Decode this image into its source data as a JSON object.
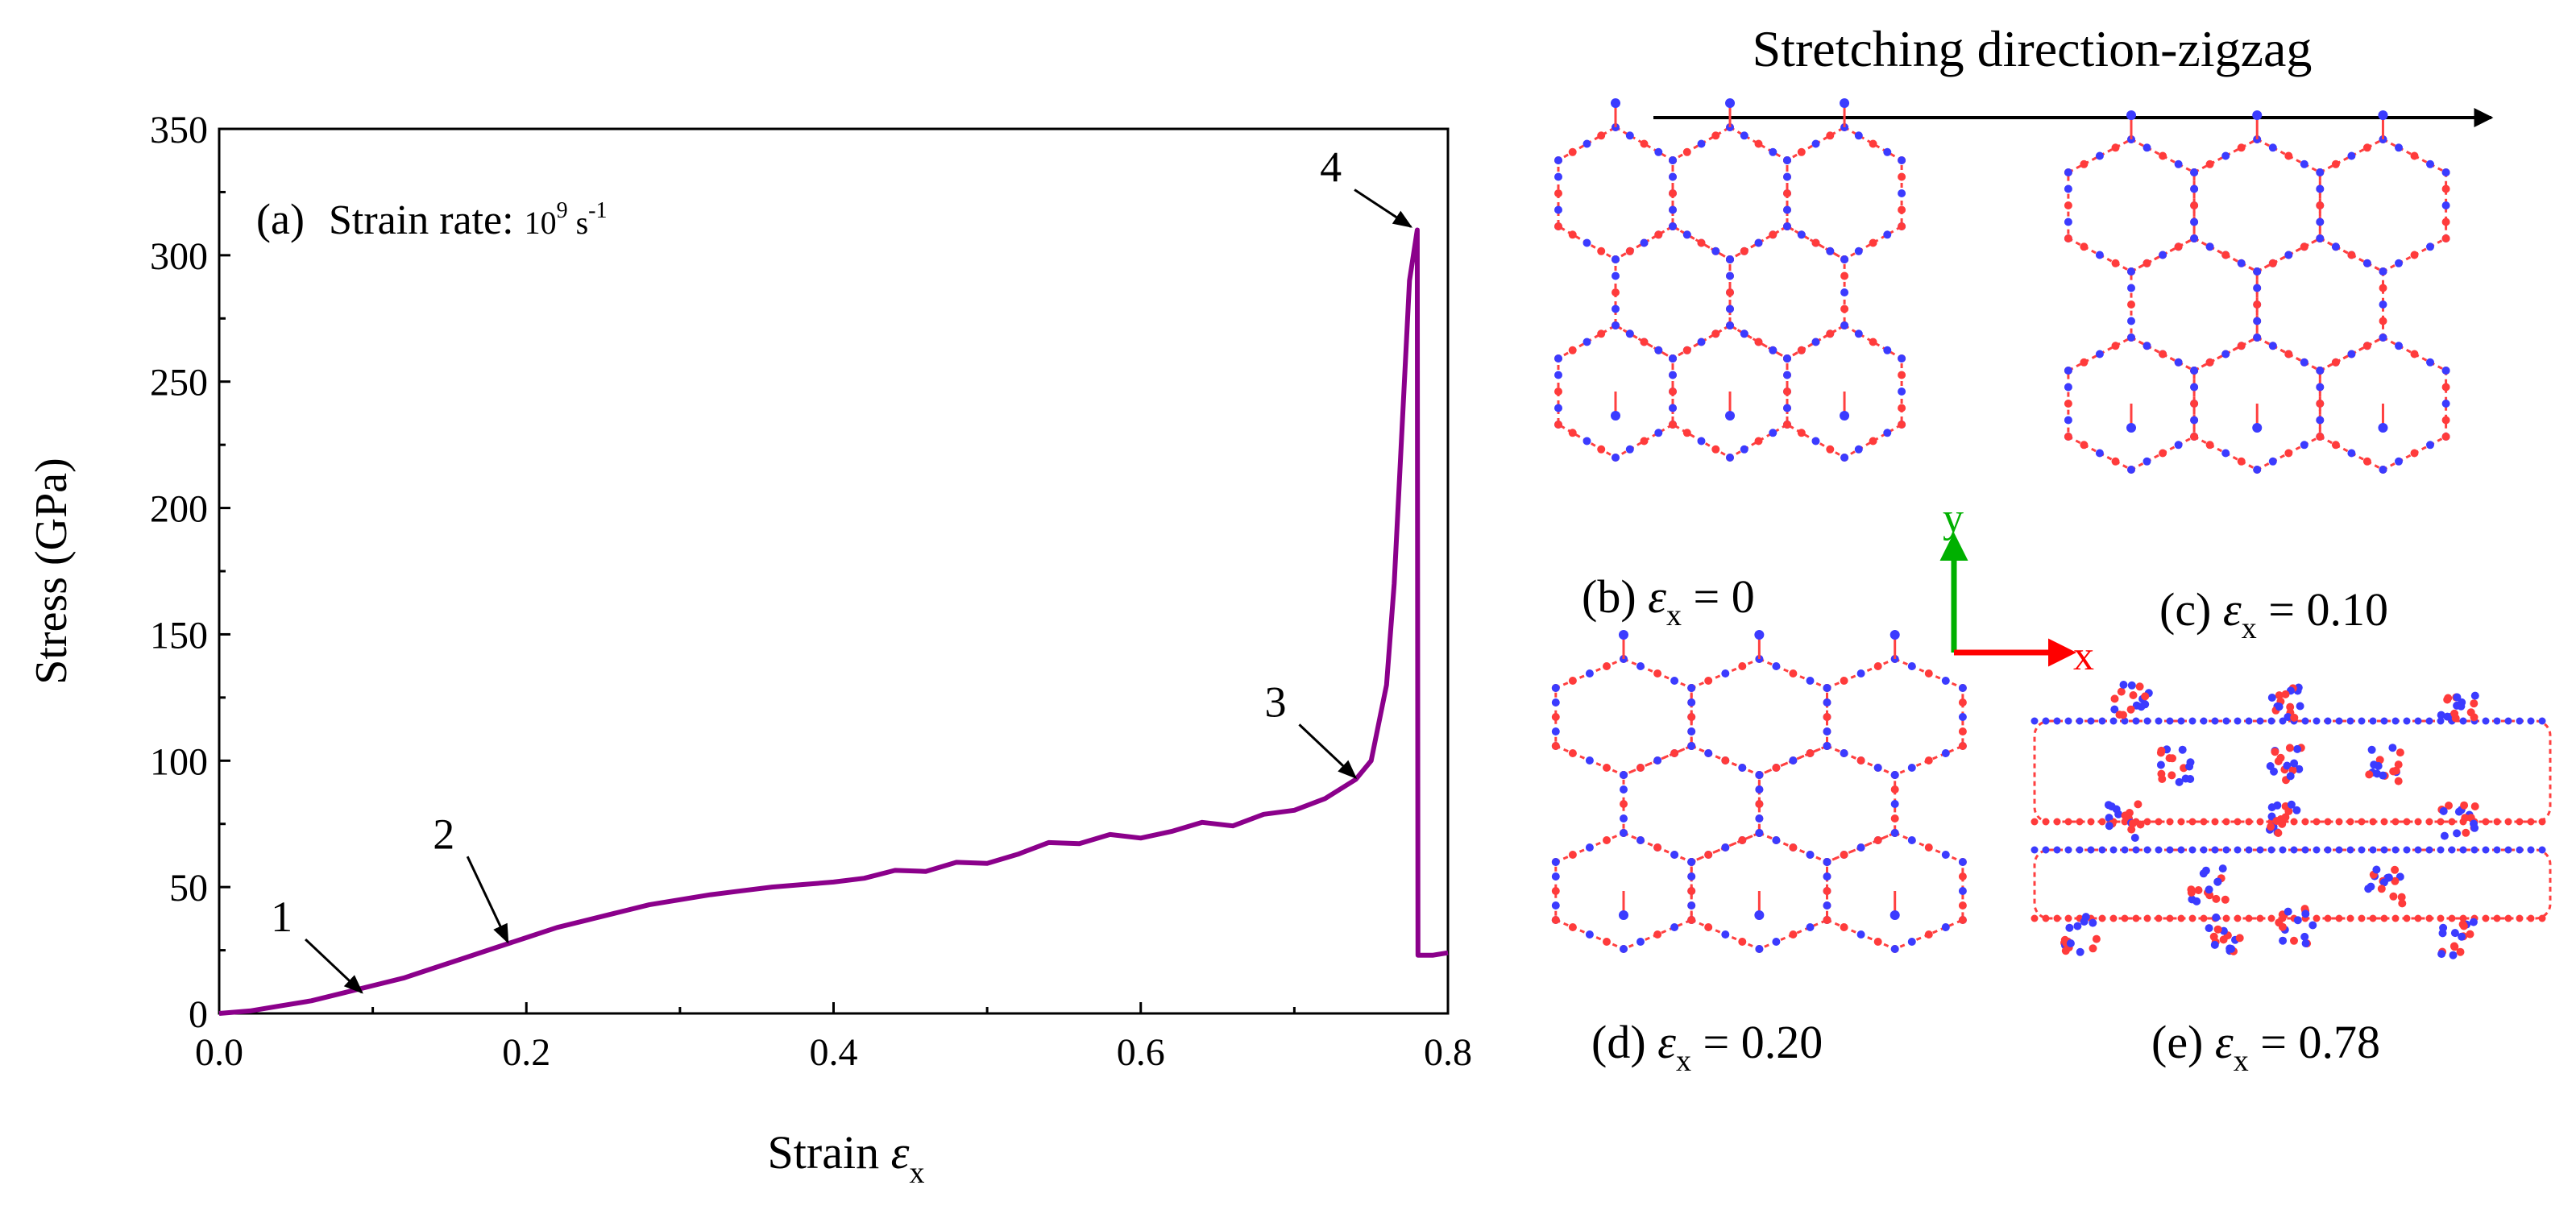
{
  "figure_title": "Stretching direction-zigzag",
  "axes_labels": {
    "x_label": "y",
    "y_label": "x"
  },
  "colors": {
    "curve": "#8B008B",
    "atom_red": "#ff3b3b",
    "atom_blue": "#3b3bff",
    "bond": "#ff4040",
    "axis_y": "#00b000",
    "axis_x": "#ff0000"
  },
  "chart_data": [
    {
      "type": "line",
      "panel_label": "(a)",
      "annotation": {
        "prefix": "Strain rate: ",
        "base": "10",
        "exp": "9",
        "unit": " s",
        "unit_exp": "-1"
      },
      "xlabel": {
        "text": "Strain ",
        "symbol": "ε",
        "subscript": "x"
      },
      "ylabel": "Stress (GPa)",
      "xlim": [
        0.0,
        0.8
      ],
      "ylim": [
        0,
        350
      ],
      "xticks": [
        "0.0",
        "0.2",
        "0.4",
        "0.6",
        "0.8"
      ],
      "xtick_values": [
        0.0,
        0.2,
        0.4,
        0.6,
        0.8
      ],
      "yticks": [
        "0",
        "50",
        "100",
        "150",
        "200",
        "250",
        "300",
        "350"
      ],
      "ytick_values": [
        0,
        50,
        100,
        150,
        200,
        250,
        300,
        350
      ],
      "series": [
        {
          "x": [
            0.0,
            0.02,
            0.04,
            0.06,
            0.08,
            0.1,
            0.12,
            0.14,
            0.16,
            0.18,
            0.2,
            0.22,
            0.24,
            0.26,
            0.28,
            0.3,
            0.32,
            0.34,
            0.36,
            0.38,
            0.4,
            0.42,
            0.44,
            0.46,
            0.48,
            0.5,
            0.52,
            0.54,
            0.56,
            0.58,
            0.6,
            0.62,
            0.64,
            0.66,
            0.68,
            0.7,
            0.72,
            0.74,
            0.75,
            0.76,
            0.765,
            0.77,
            0.775,
            0.78,
            0.7805,
            0.79,
            0.8
          ],
          "y": [
            0,
            1,
            3,
            5,
            8,
            11,
            14,
            18,
            22,
            26,
            30,
            34,
            37,
            40,
            43,
            45,
            47,
            48.5,
            50,
            51,
            52,
            53.5,
            55,
            57,
            59,
            61,
            63,
            66,
            68,
            70,
            71,
            72,
            74,
            75,
            78,
            82,
            85,
            91,
            100,
            130,
            170,
            230,
            290,
            310,
            23,
            23,
            24
          ]
        }
      ],
      "markers": [
        {
          "label": "1",
          "x": 0.095,
          "y": 7
        },
        {
          "label": "2",
          "x": 0.19,
          "y": 27
        },
        {
          "label": "3",
          "x": 0.742,
          "y": 92
        },
        {
          "label": "4",
          "x": 0.778,
          "y": 310
        }
      ]
    }
  ],
  "panels": [
    {
      "id": "b",
      "prefix": "(b) ",
      "symbol": "ε",
      "sub": "x",
      "value": " = 0",
      "strain": 0.0
    },
    {
      "id": "c",
      "prefix": "(c) ",
      "symbol": "ε",
      "sub": "x",
      "value": " = 0.10",
      "strain": 0.1
    },
    {
      "id": "d",
      "prefix": "(d) ",
      "symbol": "ε",
      "sub": "x",
      "value": " = 0.20",
      "strain": 0.2
    },
    {
      "id": "e",
      "prefix": "(e) ",
      "symbol": "ε",
      "sub": "x",
      "value": " = 0.78",
      "strain": 0.78
    }
  ]
}
